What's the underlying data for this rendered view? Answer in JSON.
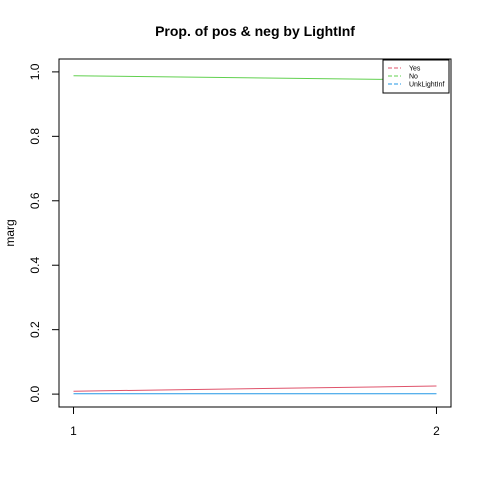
{
  "chart_data": {
    "type": "line",
    "title": "Prop. of pos & neg by LightInf",
    "xlabel": "",
    "ylabel": "marg",
    "x": [
      1,
      2
    ],
    "x_ticks": [
      "1",
      "2"
    ],
    "y_ticks": [
      "0.0",
      "0.2",
      "0.4",
      "0.6",
      "0.8",
      "1.0"
    ],
    "xlim": [
      0.96,
      2.04
    ],
    "ylim": [
      -0.04,
      1.04
    ],
    "grid": false,
    "legend_position": "top-right",
    "series": [
      {
        "name": "Yes",
        "values": [
          0.009,
          0.025
        ],
        "color": "#DF536B",
        "dash": "dashed"
      },
      {
        "name": "No",
        "values": [
          0.988,
          0.975
        ],
        "color": "#61D04F",
        "dash": "dashed"
      },
      {
        "name": "UnkLightInf",
        "values": [
          0.001,
          0.001
        ],
        "color": "#2297E6",
        "dash": "dashed"
      }
    ]
  }
}
